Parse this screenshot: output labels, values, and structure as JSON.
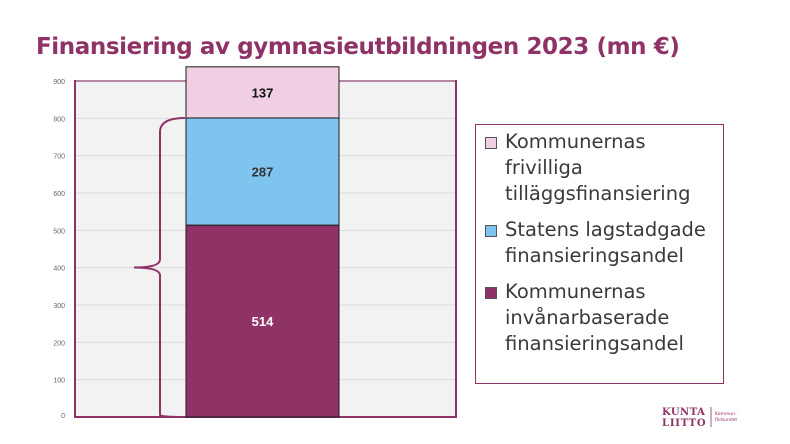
{
  "title": "Finansiering av gymnasieutbildningen 2023 (mn €)",
  "chart_data": {
    "type": "bar",
    "stacked": true,
    "categories": [
      ""
    ],
    "ylim": [
      0,
      900
    ],
    "yticks": [
      0,
      100,
      200,
      300,
      400,
      500,
      600,
      700,
      800,
      900
    ],
    "grid": true,
    "legend_position": "right",
    "series": [
      {
        "name": "Kommunernas invånarbaserade finansieringsandel",
        "values": [
          514
        ],
        "color": "#8f3266",
        "label_color": "#ffffff"
      },
      {
        "name": "Statens lagstadgade finansieringsandel",
        "values": [
          287
        ],
        "color": "#7fc4ee",
        "label_color": "#333333"
      },
      {
        "name": "Kommunernas frivilliga tilläggsfinansiering",
        "values": [
          137
        ],
        "color": "#f0cfe2",
        "label_color": "#111111"
      }
    ],
    "legend_order": [
      2,
      1,
      0
    ],
    "brace_span": [
      0,
      801
    ]
  },
  "logo": {
    "line1": "KUNTA",
    "line2": "LIITTO",
    "sub1": "Kommun-",
    "sub2": "förbundet",
    "color": "#8f3266"
  }
}
